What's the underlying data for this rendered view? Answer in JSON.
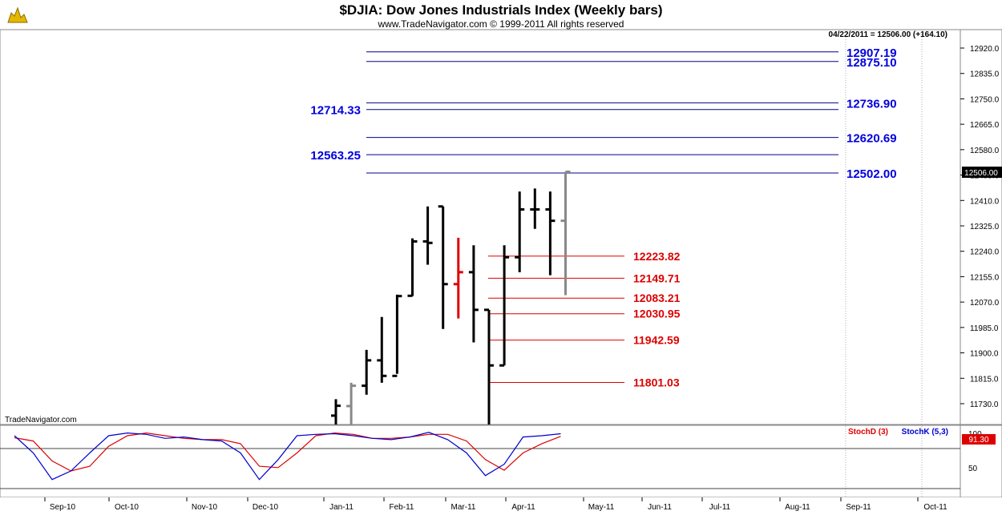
{
  "chart_data": {
    "type": "ohlc",
    "title": "$DJIA:  Dow Jones Industrials Index  (Weekly bars)",
    "copyright": "www.TradeNavigator.com © 1999-2011 All rights reserved",
    "status_line": "04/22/2011 = 12506.00 (+164.10)",
    "watermark": "TradeNavigator.com",
    "last_price_label": "12506.00",
    "stoch_value_label": "91.30",
    "y_ticks": [
      "12920.0",
      "12835.0",
      "12750.0",
      "12665.0",
      "12580.0",
      "12495.0",
      "12410.0",
      "12325.0",
      "12240.0",
      "12155.0",
      "12070.0",
      "11985.0",
      "11900.0",
      "11815.0",
      "11730.0"
    ],
    "ylim": [
      11700,
      12960
    ],
    "x_labels": [
      "Sep-10",
      "Oct-10",
      "Nov-10",
      "Dec-10",
      "Jan-11",
      "Feb-11",
      "Mar-11",
      "Apr-11",
      "May-11",
      "Jun-11",
      "Jul-11",
      "Aug-11",
      "Sep-11",
      "Oct-11"
    ],
    "bars": [
      {
        "o": 11690,
        "h": 11745,
        "l": 11600,
        "c": 11723
      },
      {
        "o": 11722,
        "h": 11800,
        "l": 11620,
        "c": 11790
      },
      {
        "o": 11790,
        "h": 11910,
        "l": 11760,
        "c": 11875
      },
      {
        "o": 11875,
        "h": 12020,
        "l": 11800,
        "c": 11823
      },
      {
        "o": 11823,
        "h": 12095,
        "l": 11830,
        "c": 12090
      },
      {
        "o": 12091,
        "h": 12283,
        "l": 12090,
        "c": 12273
      },
      {
        "o": 12273,
        "h": 12390,
        "l": 12195,
        "c": 12268
      },
      {
        "o": 12390,
        "h": 12390,
        "l": 11980,
        "c": 12130
      },
      {
        "o": 12130,
        "h": 12285,
        "l": 12015,
        "c": 12170
      },
      {
        "o": 12170,
        "h": 12260,
        "l": 11935,
        "c": 12044
      },
      {
        "o": 12044,
        "h": 12044,
        "l": 11555,
        "c": 11858
      },
      {
        "o": 11858,
        "h": 12260,
        "l": 11858,
        "c": 12220
      },
      {
        "o": 12220,
        "h": 12440,
        "l": 12170,
        "c": 12380
      },
      {
        "o": 12380,
        "h": 12450,
        "l": 12315,
        "c": 12380
      },
      {
        "o": 12380,
        "h": 12440,
        "l": 12160,
        "c": 12342
      },
      {
        "o": 12342,
        "h": 12506,
        "l": 12093,
        "c": 12506
      }
    ],
    "bar_colors": [
      "#000000",
      "#888888",
      "#000000",
      "#000000",
      "#000000",
      "#000000",
      "#000000",
      "#000000",
      "#e00000",
      "#000000",
      "#000000",
      "#000000",
      "#000000",
      "#000000",
      "#000000",
      "#888888"
    ],
    "blue_levels_right": [
      "12907.19",
      "12875.10",
      "12736.90",
      "12620.69",
      "12502.00"
    ],
    "blue_levels_left": [
      "12714.33",
      "12563.25"
    ],
    "red_levels": [
      "12223.82",
      "12149.71",
      "12083.21",
      "12030.95",
      "11942.59",
      "11801.03"
    ],
    "stoch": {
      "d_label": "StochD (3)",
      "k_label": "StochK (5,3)",
      "tick_labels": [
        "100",
        "50"
      ],
      "k": [
        88,
        62,
        22,
        35,
        62,
        88,
        92,
        90,
        84,
        86,
        82,
        80,
        62,
        22,
        52,
        88,
        90,
        91,
        88,
        84,
        82,
        86,
        93,
        82,
        62,
        28,
        45,
        86,
        88,
        91
      ],
      "d": [
        85,
        80,
        50,
        35,
        42,
        72,
        88,
        92,
        88,
        84,
        82,
        82,
        76,
        42,
        40,
        62,
        88,
        92,
        90,
        84,
        84,
        86,
        90,
        90,
        80,
        52,
        36,
        62,
        76,
        87
      ]
    }
  }
}
